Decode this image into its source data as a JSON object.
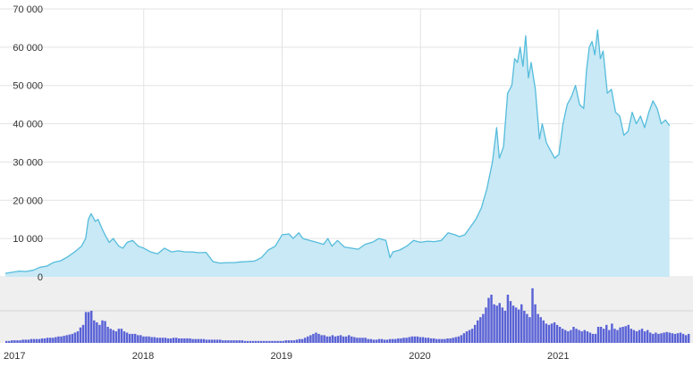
{
  "colors": {
    "area_fill": "#c8e9f5",
    "area_line": "#55bcdc",
    "volume_bar": "#5a63d6",
    "volume_panel_bg": "#efefef",
    "grid": "#e3e3e3",
    "axis_text": "#333333"
  },
  "chart_data": {
    "type": "area",
    "grid": true,
    "legend": "none",
    "price": {
      "ylim": [
        0,
        70000
      ],
      "yticks": [
        0,
        10000,
        20000,
        30000,
        40000,
        50000,
        60000,
        70000
      ],
      "ytick_labels": [
        "0",
        "10 000",
        "20 000",
        "30 000",
        "40 000",
        "50 000",
        "60 000",
        "70 000"
      ],
      "xlim": [
        2017.0,
        2021.95
      ],
      "points": [
        [
          2017.0,
          900
        ],
        [
          2017.05,
          1200
        ],
        [
          2017.1,
          1500
        ],
        [
          2017.15,
          1400
        ],
        [
          2017.2,
          1700
        ],
        [
          2017.25,
          2500
        ],
        [
          2017.3,
          2800
        ],
        [
          2017.35,
          3800
        ],
        [
          2017.4,
          4200
        ],
        [
          2017.45,
          5200
        ],
        [
          2017.5,
          6500
        ],
        [
          2017.55,
          8000
        ],
        [
          2017.58,
          10000
        ],
        [
          2017.6,
          15000
        ],
        [
          2017.62,
          16500
        ],
        [
          2017.65,
          14500
        ],
        [
          2017.67,
          15000
        ],
        [
          2017.7,
          12500
        ],
        [
          2017.72,
          11000
        ],
        [
          2017.75,
          9000
        ],
        [
          2017.78,
          10000
        ],
        [
          2017.82,
          8000
        ],
        [
          2017.85,
          7500
        ],
        [
          2017.88,
          9000
        ],
        [
          2017.92,
          9500
        ],
        [
          2017.96,
          8000
        ],
        [
          2018.0,
          7500
        ],
        [
          2018.05,
          6500
        ],
        [
          2018.1,
          6000
        ],
        [
          2018.15,
          7500
        ],
        [
          2018.2,
          6500
        ],
        [
          2018.25,
          6800
        ],
        [
          2018.3,
          6500
        ],
        [
          2018.35,
          6500
        ],
        [
          2018.4,
          6300
        ],
        [
          2018.45,
          6400
        ],
        [
          2018.5,
          4000
        ],
        [
          2018.55,
          3600
        ],
        [
          2018.6,
          3700
        ],
        [
          2018.65,
          3700
        ],
        [
          2018.7,
          3900
        ],
        [
          2018.75,
          4000
        ],
        [
          2018.8,
          4100
        ],
        [
          2018.85,
          5000
        ],
        [
          2018.9,
          7000
        ],
        [
          2018.95,
          8000
        ],
        [
          2019.0,
          11000
        ],
        [
          2019.05,
          11200
        ],
        [
          2019.08,
          10000
        ],
        [
          2019.12,
          11500
        ],
        [
          2019.15,
          10000
        ],
        [
          2019.2,
          9500
        ],
        [
          2019.25,
          9000
        ],
        [
          2019.3,
          8500
        ],
        [
          2019.33,
          10000
        ],
        [
          2019.36,
          8000
        ],
        [
          2019.4,
          9500
        ],
        [
          2019.45,
          7800
        ],
        [
          2019.5,
          7500
        ],
        [
          2019.55,
          7200
        ],
        [
          2019.6,
          8500
        ],
        [
          2019.65,
          9000
        ],
        [
          2019.7,
          10000
        ],
        [
          2019.75,
          9500
        ],
        [
          2019.78,
          5000
        ],
        [
          2019.8,
          6500
        ],
        [
          2019.85,
          7000
        ],
        [
          2019.9,
          8000
        ],
        [
          2019.95,
          9500
        ],
        [
          2020.0,
          9000
        ],
        [
          2020.05,
          9300
        ],
        [
          2020.1,
          9200
        ],
        [
          2020.15,
          9500
        ],
        [
          2020.2,
          11500
        ],
        [
          2020.25,
          11000
        ],
        [
          2020.28,
          10500
        ],
        [
          2020.32,
          11000
        ],
        [
          2020.36,
          13000
        ],
        [
          2020.4,
          15000
        ],
        [
          2020.44,
          18000
        ],
        [
          2020.48,
          23000
        ],
        [
          2020.52,
          30000
        ],
        [
          2020.55,
          39000
        ],
        [
          2020.57,
          31000
        ],
        [
          2020.6,
          34000
        ],
        [
          2020.63,
          48000
        ],
        [
          2020.66,
          50000
        ],
        [
          2020.68,
          57000
        ],
        [
          2020.7,
          56000
        ],
        [
          2020.72,
          60000
        ],
        [
          2020.74,
          55000
        ],
        [
          2020.76,
          63000
        ],
        [
          2020.78,
          52000
        ],
        [
          2020.8,
          56000
        ],
        [
          2020.83,
          49000
        ],
        [
          2020.86,
          36000
        ],
        [
          2020.88,
          40000
        ],
        [
          2020.91,
          35000
        ],
        [
          2020.94,
          33000
        ],
        [
          2020.97,
          31000
        ],
        [
          2021.0,
          32000
        ],
        [
          2021.03,
          40000
        ],
        [
          2021.06,
          45000
        ],
        [
          2021.09,
          47000
        ],
        [
          2021.12,
          50000
        ],
        [
          2021.15,
          45000
        ],
        [
          2021.18,
          44000
        ],
        [
          2021.2,
          54000
        ],
        [
          2021.22,
          60000
        ],
        [
          2021.24,
          61500
        ],
        [
          2021.26,
          58000
        ],
        [
          2021.28,
          64500
        ],
        [
          2021.3,
          57000
        ],
        [
          2021.32,
          59000
        ],
        [
          2021.35,
          48000
        ],
        [
          2021.38,
          49000
        ],
        [
          2021.41,
          43000
        ],
        [
          2021.44,
          42000
        ],
        [
          2021.47,
          37000
        ],
        [
          2021.5,
          38000
        ],
        [
          2021.53,
          43000
        ],
        [
          2021.56,
          40000
        ],
        [
          2021.59,
          42000
        ],
        [
          2021.62,
          39000
        ],
        [
          2021.65,
          43000
        ],
        [
          2021.68,
          46000
        ],
        [
          2021.71,
          44000
        ],
        [
          2021.74,
          40000
        ],
        [
          2021.77,
          41000
        ],
        [
          2021.8,
          39500
        ]
      ]
    },
    "volume": {
      "ylim": [
        0,
        100
      ],
      "gridlines": [
        50
      ],
      "values": [
        3,
        3,
        4,
        4,
        4,
        4,
        5,
        5,
        5,
        6,
        6,
        6,
        6,
        7,
        7,
        8,
        8,
        8,
        9,
        10,
        10,
        11,
        12,
        13,
        14,
        16,
        18,
        24,
        28,
        48,
        48,
        50,
        35,
        32,
        28,
        35,
        34,
        25,
        22,
        20,
        18,
        22,
        22,
        18,
        16,
        14,
        14,
        14,
        12,
        12,
        10,
        10,
        10,
        9,
        9,
        8,
        8,
        8,
        8,
        7,
        7,
        8,
        8,
        7,
        7,
        7,
        7,
        7,
        6,
        6,
        6,
        6,
        6,
        5,
        5,
        5,
        5,
        5,
        5,
        4,
        4,
        4,
        4,
        4,
        4,
        4,
        4,
        3,
        3,
        3,
        3,
        3,
        3,
        3,
        3,
        3,
        3,
        3,
        3,
        3,
        3,
        3,
        4,
        4,
        4,
        4,
        5,
        6,
        6,
        8,
        10,
        12,
        14,
        16,
        14,
        12,
        12,
        10,
        10,
        12,
        10,
        11,
        12,
        10,
        10,
        12,
        10,
        9,
        8,
        8,
        8,
        8,
        6,
        6,
        5,
        5,
        6,
        6,
        5,
        5,
        6,
        6,
        6,
        7,
        7,
        8,
        8,
        9,
        10,
        10,
        10,
        9,
        9,
        8,
        8,
        7,
        7,
        6,
        6,
        6,
        6,
        7,
        7,
        8,
        9,
        10,
        12,
        15,
        18,
        20,
        22,
        28,
        35,
        40,
        45,
        55,
        70,
        75,
        60,
        58,
        62,
        55,
        50,
        75,
        65,
        58,
        55,
        52,
        60,
        50,
        45,
        40,
        85,
        60,
        45,
        40,
        35,
        30,
        28,
        30,
        32,
        28,
        25,
        22,
        20,
        18,
        20,
        25,
        22,
        20,
        18,
        20,
        18,
        16,
        14,
        14,
        25,
        25,
        22,
        28,
        20,
        30,
        22,
        20,
        24,
        25,
        26,
        28,
        22,
        20,
        18,
        20,
        22,
        18,
        20,
        16,
        14,
        16,
        14,
        15,
        16,
        17,
        16,
        15,
        14,
        15,
        16,
        14,
        12,
        14
      ]
    },
    "x_ticks": [
      2018,
      2019,
      2020,
      2021
    ],
    "x_labels": [
      "2017",
      "2018",
      "2019",
      "2020",
      "2021"
    ]
  }
}
